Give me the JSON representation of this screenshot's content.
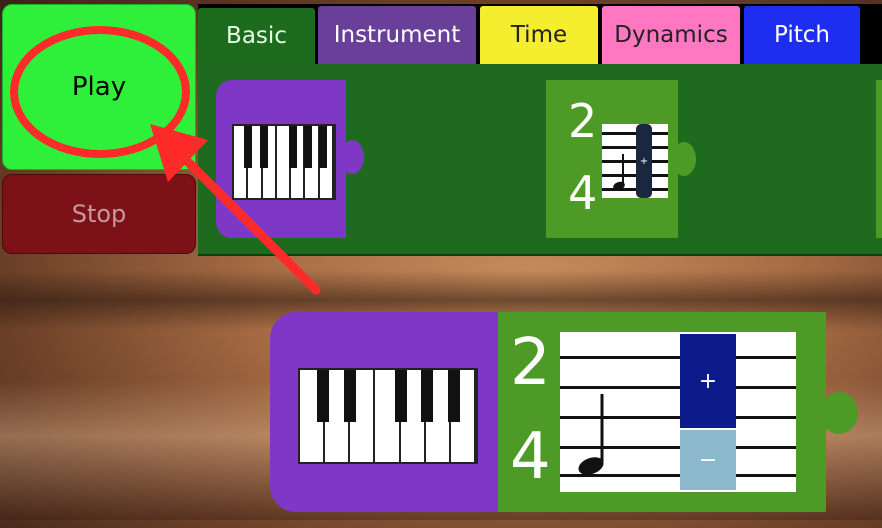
{
  "controls": {
    "play_label": "Play",
    "stop_label": "Stop"
  },
  "tabs": [
    {
      "label": "Basic"
    },
    {
      "label": "Instrument"
    },
    {
      "label": "Time"
    },
    {
      "label": "Dynamics"
    },
    {
      "label": "Pitch"
    }
  ],
  "palette": {
    "time_block": {
      "numerator": "2",
      "denominator": "4",
      "plus": "+"
    }
  },
  "program": {
    "time_block": {
      "numerator": "2",
      "denominator": "4",
      "plus_label": "+",
      "minus_label": "−"
    }
  },
  "colors": {
    "play": "#2ef03a",
    "stop": "#7c1118",
    "annotation": "#ff2a2a",
    "instrument": "#7f38c6",
    "time": "#4e9a27"
  },
  "annotation": {
    "icon": "red-circle-and-arrow"
  }
}
